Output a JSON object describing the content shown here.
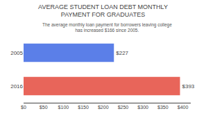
{
  "chart_data": {
    "type": "bar",
    "orientation": "horizontal",
    "title": "AVERAGE STUDENT LOAN DEBT MONTHLY\nPAYMENT FOR GRADUATES",
    "subtitle": "The average monthly loan payment for borrowers leaving college has increased $166 since 2005.",
    "categories": [
      "2005",
      "2016"
    ],
    "values": [
      227,
      393
    ],
    "value_labels": [
      "$227",
      "$393"
    ],
    "data_labels": true,
    "colors": [
      "#5b7fe8",
      "#e8655a"
    ],
    "xlim": [
      0,
      420
    ],
    "xticks": [
      {
        "value": 0,
        "label": "$0"
      },
      {
        "value": 50,
        "label": "$50"
      },
      {
        "value": 100,
        "label": "$100"
      },
      {
        "value": 150,
        "label": "$150"
      },
      {
        "value": 200,
        "label": "$200"
      },
      {
        "value": 250,
        "label": "$250"
      },
      {
        "value": 300,
        "label": "$300"
      },
      {
        "value": 350,
        "label": "$350"
      },
      {
        "value": 400,
        "label": "$400"
      }
    ],
    "grid": false
  }
}
